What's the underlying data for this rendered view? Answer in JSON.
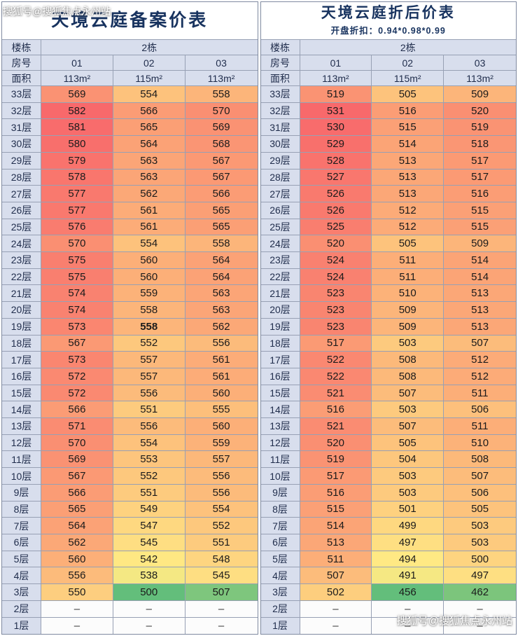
{
  "watermarks": {
    "top_left": "搜狐号@搜狐焦点永州站",
    "bottom_right": "搜狐号@搜狐焦点永州站"
  },
  "chart_data": [
    {
      "type": "heatmap",
      "title": "天境云庭备案价表",
      "subtitle": "",
      "header": {
        "building_label": "楼栋",
        "building": "2栋",
        "room_label": "房号",
        "rooms": [
          "01",
          "02",
          "03"
        ],
        "area_label": "面积",
        "areas": [
          "113m²",
          "115m²",
          "113m²"
        ]
      },
      "floors": [
        "33层",
        "32层",
        "31层",
        "30层",
        "29层",
        "28层",
        "27层",
        "26层",
        "25层",
        "24层",
        "23层",
        "22层",
        "21层",
        "20层",
        "19层",
        "18层",
        "17层",
        "16层",
        "15层",
        "14层",
        "13层",
        "12层",
        "11层",
        "10层",
        "9层",
        "8层",
        "7层",
        "6层",
        "5层",
        "4层",
        "3层",
        "2层",
        "1层"
      ],
      "rows": [
        [
          569,
          554,
          558
        ],
        [
          582,
          566,
          570
        ],
        [
          581,
          565,
          569
        ],
        [
          580,
          564,
          568
        ],
        [
          579,
          563,
          567
        ],
        [
          578,
          563,
          567
        ],
        [
          577,
          562,
          566
        ],
        [
          577,
          561,
          565
        ],
        [
          576,
          561,
          565
        ],
        [
          570,
          554,
          558
        ],
        [
          575,
          560,
          564
        ],
        [
          575,
          560,
          564
        ],
        [
          574,
          559,
          563
        ],
        [
          574,
          558,
          563
        ],
        [
          573,
          558,
          562
        ],
        [
          567,
          552,
          556
        ],
        [
          573,
          557,
          561
        ],
        [
          572,
          557,
          561
        ],
        [
          572,
          556,
          560
        ],
        [
          566,
          551,
          555
        ],
        [
          571,
          556,
          560
        ],
        [
          570,
          554,
          559
        ],
        [
          569,
          553,
          557
        ],
        [
          567,
          552,
          556
        ],
        [
          566,
          551,
          556
        ],
        [
          565,
          549,
          554
        ],
        [
          564,
          547,
          552
        ],
        [
          562,
          545,
          551
        ],
        [
          560,
          542,
          548
        ],
        [
          556,
          538,
          545
        ],
        [
          550,
          500,
          507
        ],
        [
          "–",
          "–",
          "–"
        ],
        [
          "–",
          "–",
          "–"
        ]
      ],
      "color_scale": {
        "min_color": "#63BE7B",
        "mid_color": "#FFEB84",
        "max_color": "#F8696B"
      },
      "bold_cell": {
        "row_index": 14,
        "col_index": 1
      }
    },
    {
      "type": "heatmap",
      "title": "天境云庭折后价表",
      "subtitle": "开盘折扣：0.94*0.98*0.99",
      "header": {
        "building_label": "楼栋",
        "building": "2栋",
        "room_label": "房号",
        "rooms": [
          "01",
          "02",
          "03"
        ],
        "area_label": "面积",
        "areas": [
          "113m²",
          "115m²",
          "113m²"
        ]
      },
      "floors": [
        "33层",
        "32层",
        "31层",
        "30层",
        "29层",
        "28层",
        "27层",
        "26层",
        "25层",
        "24层",
        "23层",
        "22层",
        "21层",
        "20层",
        "19层",
        "18层",
        "17层",
        "16层",
        "15层",
        "14层",
        "13层",
        "12层",
        "11层",
        "10层",
        "9层",
        "8层",
        "7层",
        "6层",
        "5层",
        "4层",
        "3层",
        "2层",
        "1层"
      ],
      "rows": [
        [
          519,
          505,
          509
        ],
        [
          531,
          516,
          520
        ],
        [
          530,
          515,
          519
        ],
        [
          529,
          514,
          518
        ],
        [
          528,
          513,
          517
        ],
        [
          527,
          513,
          517
        ],
        [
          526,
          513,
          516
        ],
        [
          526,
          512,
          515
        ],
        [
          525,
          512,
          515
        ],
        [
          520,
          505,
          509
        ],
        [
          524,
          511,
          514
        ],
        [
          524,
          511,
          514
        ],
        [
          523,
          510,
          513
        ],
        [
          523,
          509,
          513
        ],
        [
          523,
          509,
          513
        ],
        [
          517,
          503,
          507
        ],
        [
          522,
          508,
          512
        ],
        [
          522,
          508,
          512
        ],
        [
          521,
          507,
          511
        ],
        [
          516,
          503,
          506
        ],
        [
          521,
          507,
          511
        ],
        [
          520,
          505,
          510
        ],
        [
          519,
          504,
          508
        ],
        [
          517,
          503,
          507
        ],
        [
          516,
          503,
          506
        ],
        [
          515,
          501,
          505
        ],
        [
          514,
          499,
          503
        ],
        [
          513,
          497,
          503
        ],
        [
          511,
          494,
          500
        ],
        [
          507,
          491,
          497
        ],
        [
          502,
          456,
          462
        ],
        [
          "–",
          "–",
          "–"
        ],
        [
          "–",
          "–",
          "–"
        ]
      ],
      "color_scale": {
        "min_color": "#63BE7B",
        "mid_color": "#FFEB84",
        "max_color": "#F8696B"
      },
      "bold_cell": null
    }
  ]
}
